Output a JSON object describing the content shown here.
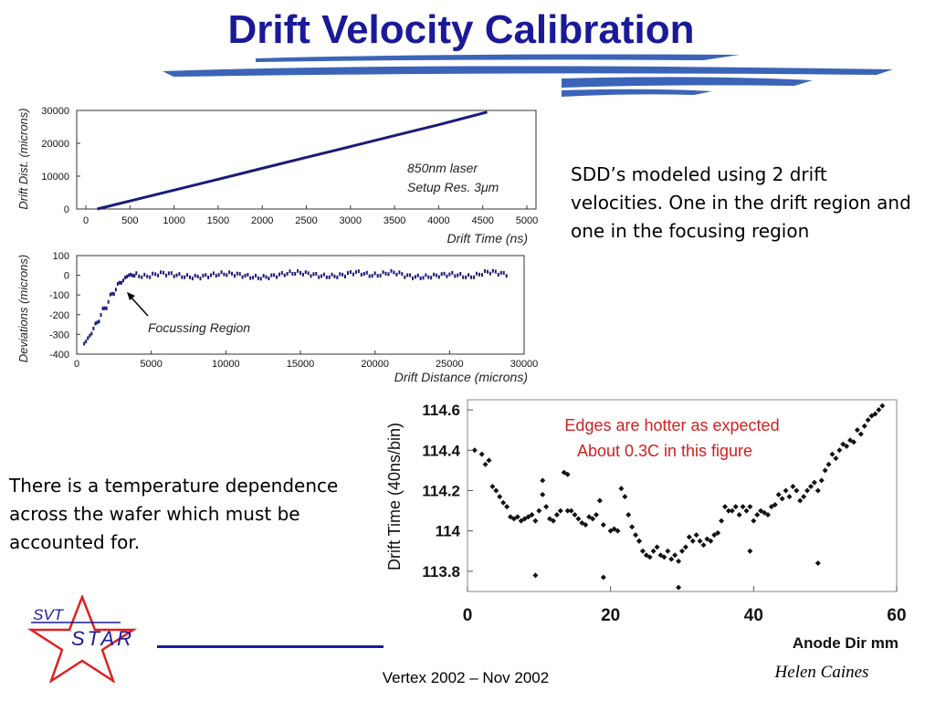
{
  "slide": {
    "title": "Drift Velocity Calibration",
    "note_sdd": "SDD’s modeled using 2 drift velocities.  One in the drift region and one in the focusing region",
    "note_temperature": "There is a temperature dependence across the wafer which must be accounted for.",
    "footer": "Vertex 2002 – Nov 2002",
    "author": "Helen Caines",
    "logo": {
      "top_text": "SVT",
      "bottom_text": "STAR"
    }
  },
  "colors": {
    "title": "#1a1a99",
    "swoosh": "#3b64b8",
    "plot_line": "#1a1a7a",
    "annotation_red": "#d02020",
    "logo_red": "#e02020",
    "logo_blue": "#1a1a99"
  },
  "chart_data": [
    {
      "type": "line",
      "xlabel": "Drift Time (ns)",
      "ylabel": "Drift Dist. (microns)",
      "xlim": [
        0,
        5000
      ],
      "ylim": [
        0,
        30000
      ],
      "xticks": [
        0,
        500,
        1000,
        1500,
        2000,
        2500,
        3000,
        3500,
        4000,
        4500,
        5000
      ],
      "yticks": [
        0,
        10000,
        20000,
        30000
      ],
      "annotations": [
        "850nm laser",
        "Setup Res. 3μm"
      ],
      "series": [
        {
          "x": [
            130,
            500,
            1000,
            1500,
            2000,
            2500,
            3000,
            3500,
            4000,
            4550
          ],
          "y": [
            0,
            2450,
            5750,
            9050,
            12400,
            15700,
            19000,
            22350,
            25650,
            29500
          ]
        }
      ]
    },
    {
      "type": "scatter",
      "xlabel": "Drift Distance (microns)",
      "ylabel": "Deviations  (microns)",
      "xlim": [
        0,
        30000
      ],
      "ylim": [
        -400,
        100
      ],
      "xticks": [
        0,
        5000,
        10000,
        15000,
        20000,
        25000,
        30000
      ],
      "yticks": [
        100,
        0,
        -100,
        -200,
        -300,
        -400
      ],
      "annotation": "Focussing Region",
      "series": [
        {
          "x": [
            500,
            1000,
            1500,
            2000,
            2500,
            3000,
            3500,
            4000,
            6000,
            9000,
            12000,
            15000,
            18000,
            20000,
            22000,
            25000,
            27000,
            29000
          ],
          "y": [
            -350,
            -290,
            -220,
            -150,
            -80,
            -30,
            0,
            5,
            0,
            0,
            -3,
            5,
            3,
            10,
            2,
            -5,
            5,
            15
          ]
        }
      ]
    },
    {
      "type": "scatter",
      "xlabel": "Anode Dir mm",
      "ylabel": "Drift Time (40ns/bin)",
      "xlim": [
        0,
        60
      ],
      "ylim": [
        113.7,
        114.65
      ],
      "xticks": [
        0,
        20,
        40,
        60
      ],
      "yticks": [
        114.6,
        114.4,
        114.2,
        114,
        113.8
      ],
      "annotation": [
        "Edges are hotter as expected",
        "About 0.3C in this figure"
      ],
      "series": [
        {
          "x": [
            1,
            2,
            2.5,
            3,
            3.5,
            4,
            4.5,
            5,
            5.5,
            6,
            6.5,
            7,
            7.5,
            8,
            8.5,
            9,
            9.5,
            10,
            10.5,
            11,
            11.5,
            12,
            12.5,
            13,
            13.5,
            14,
            14.5,
            15,
            15.5,
            16,
            16.5,
            17,
            17.5,
            18,
            18.5,
            19,
            20,
            21,
            21.5,
            22,
            22.5,
            23,
            23.5,
            24,
            24.5,
            25,
            25.5,
            26,
            26.5,
            27,
            27.5,
            28,
            28.5,
            29,
            29.5,
            30,
            30.5,
            31,
            31.5,
            32,
            32.5,
            33,
            33.5,
            34,
            34.5,
            35,
            35.5,
            36,
            36.5,
            37,
            37.5,
            38,
            38.5,
            39,
            39.5,
            40,
            40.5,
            41,
            41.5,
            42,
            42.5,
            43,
            43.5,
            44,
            44.5,
            45,
            45.5,
            46,
            46.5,
            47,
            47.5,
            48,
            48.5,
            49,
            49.5,
            50,
            50.5,
            51,
            51.5,
            52,
            52.5,
            53,
            53.5,
            54,
            54.5,
            55,
            55.5,
            56,
            56.5,
            57,
            57.5,
            58,
            9.5,
            19,
            29.5,
            39.5,
            49,
            14,
            10.5,
            20.5,
            24
          ],
          "y": [
            114.4,
            114.38,
            114.33,
            114.35,
            114.22,
            114.2,
            114.17,
            114.14,
            114.12,
            114.07,
            114.06,
            114.07,
            114.05,
            114.06,
            114.07,
            114.08,
            114.05,
            114.1,
            114.25,
            114.12,
            114.06,
            114.05,
            114.08,
            114.1,
            114.29,
            114.28,
            114.1,
            114.08,
            114.06,
            114.04,
            114.03,
            114.07,
            114.06,
            114.08,
            114.15,
            114.03,
            114.0,
            114.0,
            114.21,
            114.17,
            114.08,
            114.02,
            113.98,
            113.95,
            113.9,
            113.88,
            113.87,
            113.9,
            113.92,
            113.88,
            113.87,
            113.9,
            113.86,
            113.88,
            113.85,
            113.9,
            113.92,
            113.97,
            113.95,
            113.98,
            113.95,
            113.93,
            113.96,
            113.95,
            113.98,
            113.99,
            114.05,
            114.12,
            114.1,
            114.1,
            114.12,
            114.08,
            114.12,
            114.1,
            114.12,
            114.05,
            114.08,
            114.1,
            114.09,
            114.08,
            114.12,
            114.13,
            114.18,
            114.16,
            114.2,
            114.17,
            114.22,
            114.2,
            114.15,
            114.17,
            114.2,
            114.22,
            114.24,
            114.2,
            114.25,
            114.3,
            114.33,
            114.38,
            114.36,
            114.4,
            114.43,
            114.42,
            114.45,
            114.44,
            114.5,
            114.48,
            114.52,
            114.55,
            114.57,
            114.58,
            114.6,
            114.62,
            113.78,
            113.77,
            113.72,
            113.9,
            113.84,
            114.1,
            114.18,
            114.01,
            113.95
          ]
        }
      ]
    }
  ]
}
